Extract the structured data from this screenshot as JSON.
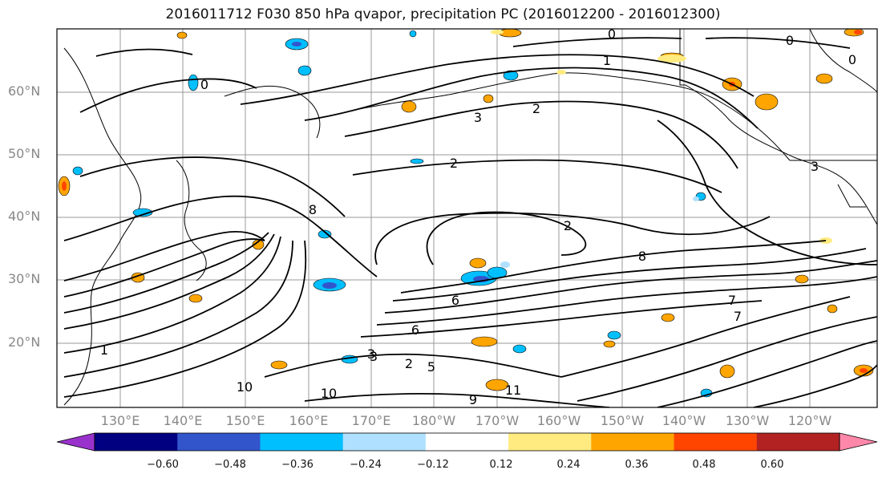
{
  "title": "2016011712 F030 850 hPa qvapor, precipitation PC (2016012200 - 2016012300)",
  "lat_labels": [
    "60°N",
    "50°N",
    "40°N",
    "30°N",
    "20°N"
  ],
  "lon_labels": [
    "130°E",
    "140°E",
    "150°E",
    "160°E",
    "170°E",
    "180°W",
    "170°W",
    "160°W",
    "150°W",
    "140°W",
    "130°W",
    "120°W"
  ],
  "colorbar": {
    "tick_labels": [
      "−0.60",
      "−0.48",
      "−0.36",
      "−0.24",
      "−0.12",
      "0.12",
      "0.24",
      "0.36",
      "0.48",
      "0.60"
    ],
    "colors": [
      "#9932cc",
      "#000080",
      "#3355cc",
      "#00bfff",
      "#b0e0ff",
      "#ffffff",
      "#ffeb80",
      "#ffa500",
      "#ff4500",
      "#b22222",
      "#ff88aa"
    ]
  },
  "contour_labels": [
    "0",
    "0",
    "0",
    "1",
    "2",
    "3",
    "2",
    "2",
    "3",
    "8",
    "8",
    "6",
    "6",
    "7",
    "7",
    "1",
    "2",
    "3",
    "5",
    "9",
    "10",
    "10",
    "11",
    "0",
    "3"
  ]
}
